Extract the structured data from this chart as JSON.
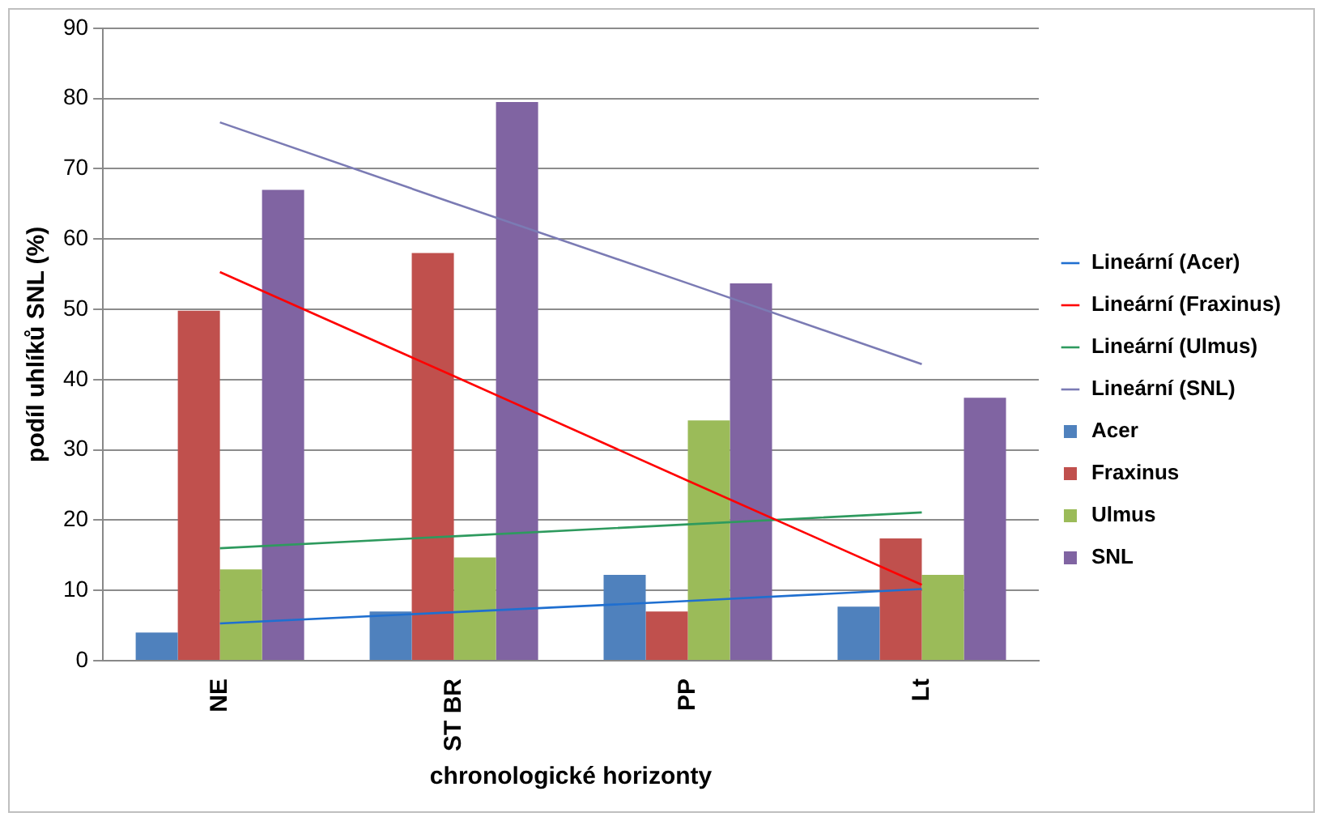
{
  "chart_data": {
    "type": "bar",
    "xlabel": "chronologické horizonty",
    "ylabel": "podíl uhlíků SNL (%)",
    "categories": [
      "NE",
      "ST BR",
      "PP",
      "Lt"
    ],
    "series": [
      {
        "name": "Acer",
        "color": "#4f81bd",
        "values": [
          4,
          7,
          12.2,
          7.7
        ]
      },
      {
        "name": "Fraxinus",
        "color": "#c0504d",
        "values": [
          49.8,
          58,
          7,
          17.4
        ]
      },
      {
        "name": "Ulmus",
        "color": "#9bbb59",
        "values": [
          13,
          14.7,
          34.2,
          12.2
        ]
      },
      {
        "name": "SNL",
        "color": "#8064a2",
        "values": [
          67,
          79.5,
          53.7,
          37.4
        ]
      },
      {
        "name": "Lineární (Acer)",
        "type": "line",
        "color": "#1f6fd0",
        "values": [
          5.3,
          6.9,
          8.5,
          10.2
        ]
      },
      {
        "name": "Lineární (Fraxinus)",
        "type": "line",
        "color": "#ff0000",
        "values": [
          55.3,
          40.5,
          25.6,
          10.8
        ]
      },
      {
        "name": "Lineární (Ulmus)",
        "type": "line",
        "color": "#2e9a5e",
        "values": [
          16.0,
          17.7,
          19.4,
          21.1
        ]
      },
      {
        "name": "Lineární (SNL)",
        "type": "line",
        "color": "#7b7bb4",
        "values": [
          76.6,
          65.1,
          53.7,
          42.2
        ]
      }
    ],
    "ylim": [
      0,
      90
    ],
    "yticks": [
      0,
      10,
      20,
      30,
      40,
      50,
      60,
      70,
      80,
      90
    ],
    "grid": "y",
    "legend": "right",
    "marker": "none",
    "line_style": "solid"
  }
}
